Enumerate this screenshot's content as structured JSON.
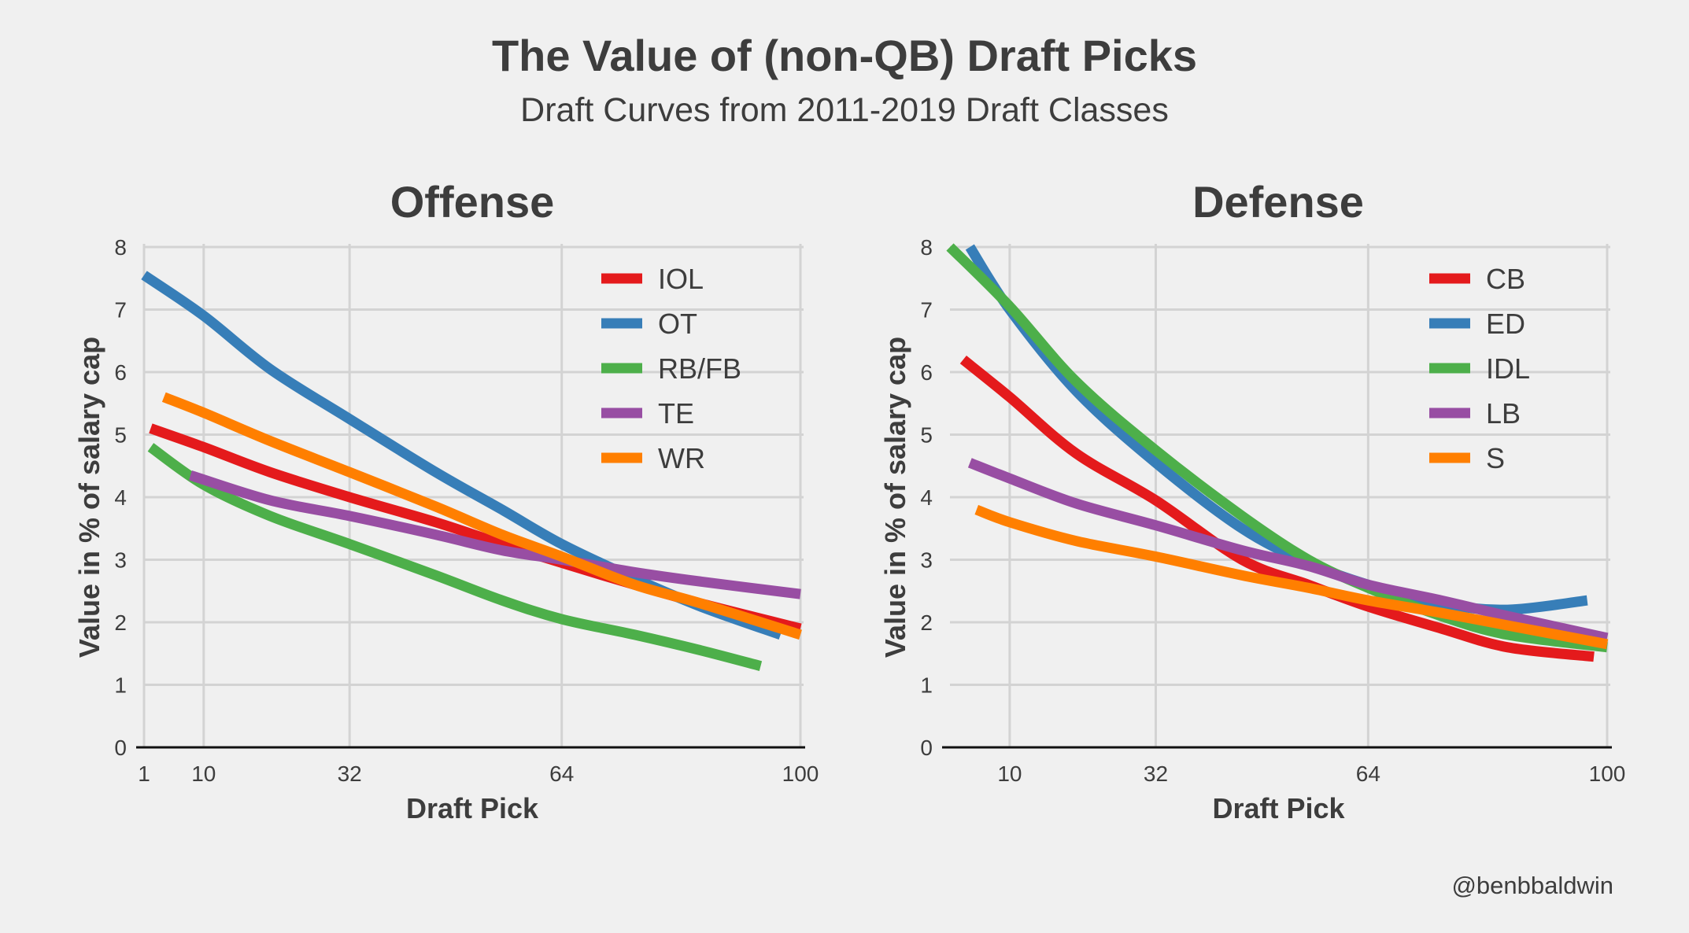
{
  "title": "The Value of (non-QB) Draft Picks",
  "subtitle": "Draft Curves from 2011-2019 Draft Classes",
  "credit": "@benbbaldwin",
  "colors": {
    "background": "#f0f0f0",
    "grid": "#d3d3d3",
    "axis": "#111111",
    "red": "#e41a1c",
    "blue": "#377eb8",
    "green": "#4daf4a",
    "purple": "#984ea3",
    "orange": "#ff7f00"
  },
  "chart_data": [
    {
      "type": "line",
      "title": "Offense",
      "xlabel": "Draft Pick",
      "ylabel": "Value in % of salary cap",
      "xlim": [
        1,
        100
      ],
      "ylim": [
        0,
        8
      ],
      "x_ticks": [
        1,
        10,
        32,
        64,
        100
      ],
      "y_ticks": [
        0,
        1,
        2,
        3,
        4,
        5,
        6,
        7,
        8
      ],
      "grid": true,
      "legend_position": "top-right",
      "series": [
        {
          "name": "IOL",
          "color": "#e41a1c",
          "points": [
            [
              2,
              5.1
            ],
            [
              10,
              4.8
            ],
            [
              20,
              4.4
            ],
            [
              32,
              4.0
            ],
            [
              45,
              3.6
            ],
            [
              55,
              3.25
            ],
            [
              64,
              2.95
            ],
            [
              75,
              2.6
            ],
            [
              85,
              2.3
            ],
            [
              100,
              1.9
            ]
          ]
        },
        {
          "name": "OT",
          "color": "#377eb8",
          "points": [
            [
              1,
              7.55
            ],
            [
              10,
              6.9
            ],
            [
              20,
              6.05
            ],
            [
              32,
              5.25
            ],
            [
              45,
              4.4
            ],
            [
              55,
              3.8
            ],
            [
              64,
              3.25
            ],
            [
              75,
              2.7
            ],
            [
              85,
              2.25
            ],
            [
              97,
              1.8
            ]
          ]
        },
        {
          "name": "RB/FB",
          "color": "#4daf4a",
          "points": [
            [
              2,
              4.8
            ],
            [
              10,
              4.2
            ],
            [
              20,
              3.7
            ],
            [
              32,
              3.25
            ],
            [
              45,
              2.75
            ],
            [
              55,
              2.35
            ],
            [
              64,
              2.05
            ],
            [
              75,
              1.8
            ],
            [
              85,
              1.55
            ],
            [
              94,
              1.3
            ]
          ]
        },
        {
          "name": "TE",
          "color": "#984ea3",
          "points": [
            [
              8,
              4.35
            ],
            [
              20,
              3.95
            ],
            [
              32,
              3.7
            ],
            [
              45,
              3.4
            ],
            [
              55,
              3.15
            ],
            [
              64,
              3.0
            ],
            [
              75,
              2.8
            ],
            [
              85,
              2.65
            ],
            [
              100,
              2.45
            ]
          ]
        },
        {
          "name": "WR",
          "color": "#ff7f00",
          "points": [
            [
              4,
              5.6
            ],
            [
              10,
              5.35
            ],
            [
              20,
              4.9
            ],
            [
              32,
              4.4
            ],
            [
              45,
              3.85
            ],
            [
              55,
              3.4
            ],
            [
              64,
              3.05
            ],
            [
              75,
              2.6
            ],
            [
              85,
              2.3
            ],
            [
              100,
              1.8
            ]
          ]
        }
      ]
    },
    {
      "type": "line",
      "title": "Defense",
      "xlabel": "Draft Pick",
      "ylabel": "Value in % of salary cap",
      "xlim": [
        1,
        100
      ],
      "ylim": [
        0,
        8
      ],
      "x_ticks": [
        10,
        32,
        64,
        100
      ],
      "y_ticks": [
        0,
        1,
        2,
        3,
        4,
        5,
        6,
        7,
        8
      ],
      "grid": true,
      "legend_position": "top-right",
      "series": [
        {
          "name": "CB",
          "color": "#e41a1c",
          "points": [
            [
              3,
              6.2
            ],
            [
              10,
              5.6
            ],
            [
              20,
              4.7
            ],
            [
              32,
              3.95
            ],
            [
              45,
              3.0
            ],
            [
              55,
              2.6
            ],
            [
              64,
              2.25
            ],
            [
              75,
              1.9
            ],
            [
              85,
              1.6
            ],
            [
              98,
              1.45
            ]
          ]
        },
        {
          "name": "ED",
          "color": "#377eb8",
          "points": [
            [
              4,
              8.0
            ],
            [
              10,
              7.0
            ],
            [
              20,
              5.7
            ],
            [
              32,
              4.55
            ],
            [
              45,
              3.5
            ],
            [
              55,
              2.95
            ],
            [
              64,
              2.6
            ],
            [
              75,
              2.3
            ],
            [
              85,
              2.2
            ],
            [
              97,
              2.35
            ]
          ]
        },
        {
          "name": "IDL",
          "color": "#4daf4a",
          "points": [
            [
              1,
              8.0
            ],
            [
              10,
              7.05
            ],
            [
              20,
              5.85
            ],
            [
              32,
              4.75
            ],
            [
              45,
              3.7
            ],
            [
              55,
              3.0
            ],
            [
              64,
              2.55
            ],
            [
              75,
              2.1
            ],
            [
              85,
              1.8
            ],
            [
              100,
              1.6
            ]
          ]
        },
        {
          "name": "LB",
          "color": "#984ea3",
          "points": [
            [
              4,
              4.55
            ],
            [
              10,
              4.3
            ],
            [
              20,
              3.9
            ],
            [
              32,
              3.55
            ],
            [
              45,
              3.15
            ],
            [
              55,
              2.9
            ],
            [
              64,
              2.6
            ],
            [
              75,
              2.35
            ],
            [
              85,
              2.1
            ],
            [
              100,
              1.75
            ]
          ]
        },
        {
          "name": "S",
          "color": "#ff7f00",
          "points": [
            [
              5,
              3.8
            ],
            [
              10,
              3.6
            ],
            [
              20,
              3.3
            ],
            [
              32,
              3.05
            ],
            [
              45,
              2.75
            ],
            [
              55,
              2.55
            ],
            [
              64,
              2.35
            ],
            [
              75,
              2.15
            ],
            [
              85,
              1.95
            ],
            [
              100,
              1.65
            ]
          ]
        }
      ]
    }
  ]
}
